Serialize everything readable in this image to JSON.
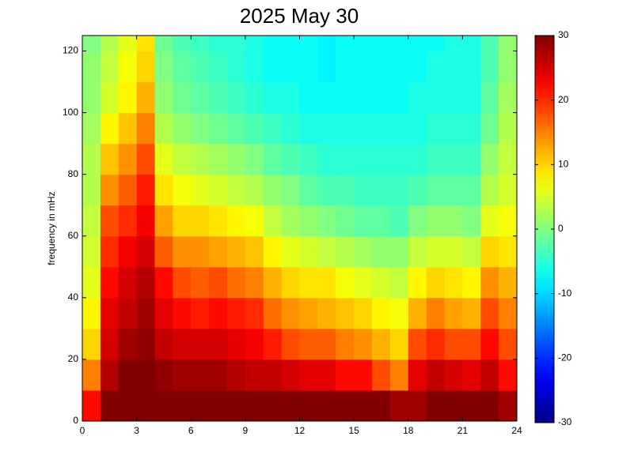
{
  "chart_data": {
    "type": "heatmap",
    "title": "2025 May 30",
    "y_label": "frequency in mHz",
    "colormap": "jet",
    "x_bins": [
      0,
      1,
      2,
      3,
      4,
      5,
      6,
      7,
      8,
      9,
      10,
      11,
      12,
      13,
      14,
      15,
      16,
      17,
      18,
      19,
      20,
      21,
      22,
      23,
      24
    ],
    "y_bins": [
      0,
      10,
      20,
      30,
      40,
      50,
      60,
      70,
      80,
      90,
      100,
      110,
      120,
      125
    ],
    "values": [
      [
        22,
        30,
        30,
        30,
        30,
        30,
        30,
        30,
        30,
        30,
        30,
        30,
        30,
        30,
        30,
        30,
        30,
        28,
        28,
        30,
        30,
        30,
        30,
        28
      ],
      [
        15,
        27,
        30,
        30,
        29,
        28,
        28,
        28,
        27,
        26,
        26,
        25,
        24,
        24,
        22,
        22,
        18,
        15,
        24,
        26,
        25,
        24,
        26,
        22
      ],
      [
        10,
        25,
        28,
        29,
        26,
        25,
        25,
        25,
        24,
        23,
        21,
        18,
        17,
        17,
        15,
        14,
        12,
        10,
        18,
        20,
        18,
        18,
        22,
        18
      ],
      [
        8,
        24,
        26,
        28,
        24,
        22,
        21,
        22,
        21,
        20,
        16,
        14,
        13,
        12,
        11,
        10,
        8,
        7,
        12,
        15,
        13,
        12,
        18,
        15
      ],
      [
        6,
        22,
        25,
        27,
        22,
        18,
        17,
        18,
        16,
        15,
        12,
        10,
        9,
        9,
        7,
        6,
        5,
        4,
        8,
        10,
        9,
        8,
        14,
        12
      ],
      [
        5,
        20,
        23,
        25,
        17,
        14,
        14,
        13,
        12,
        11,
        8,
        6,
        5,
        4,
        3,
        2,
        1,
        1,
        4,
        5,
        5,
        4,
        10,
        9
      ],
      [
        4,
        18,
        20,
        23,
        13,
        10,
        10,
        9,
        8,
        7,
        4,
        2,
        1,
        0,
        -1,
        -2,
        -2,
        -3,
        0,
        1,
        1,
        0,
        6,
        7
      ],
      [
        3,
        14,
        17,
        21,
        9,
        7,
        6,
        5,
        4,
        3,
        1,
        0,
        -2,
        -3,
        -3,
        -4,
        -4,
        -4,
        -3,
        -2,
        -2,
        -2,
        3,
        5
      ],
      [
        3,
        11,
        14,
        18,
        6,
        4,
        3,
        2,
        1,
        0,
        -2,
        -3,
        -4,
        -5,
        -5,
        -5,
        -5,
        -5,
        -5,
        -4,
        -4,
        -4,
        1,
        4
      ],
      [
        2,
        8,
        11,
        15,
        3,
        1,
        0,
        -1,
        -2,
        -3,
        -4,
        -5,
        -6,
        -6,
        -6,
        -6,
        -6,
        -6,
        -6,
        -5,
        -5,
        -5,
        -1,
        3
      ],
      [
        1,
        5,
        8,
        12,
        1,
        -1,
        -2,
        -3,
        -4,
        -5,
        -6,
        -6,
        -7,
        -7,
        -7,
        -7,
        -7,
        -7,
        -6,
        -6,
        -6,
        -6,
        -2,
        2
      ],
      [
        1,
        4,
        7,
        10,
        0,
        -2,
        -3,
        -4,
        -5,
        -6,
        -7,
        -7,
        -7,
        -8,
        -7,
        -7,
        -7,
        -7,
        -7,
        -6,
        -6,
        -6,
        -3,
        1
      ],
      [
        0,
        3,
        6,
        9,
        -1,
        -3,
        -4,
        -5,
        -5,
        -6,
        -7,
        -7,
        -7,
        -8,
        -7,
        -7,
        -7,
        -7,
        -7,
        -7,
        -6,
        -6,
        -3,
        1
      ]
    ],
    "xlim": [
      0,
      24
    ],
    "xticks": [
      0,
      3,
      6,
      9,
      12,
      15,
      18,
      21,
      24
    ],
    "ylim": [
      0,
      125
    ],
    "yticks": [
      0,
      20,
      40,
      60,
      80,
      100,
      120
    ],
    "clim": [
      -30,
      30
    ],
    "cticks": [
      -30,
      -20,
      -10,
      0,
      10,
      20,
      30
    ]
  }
}
